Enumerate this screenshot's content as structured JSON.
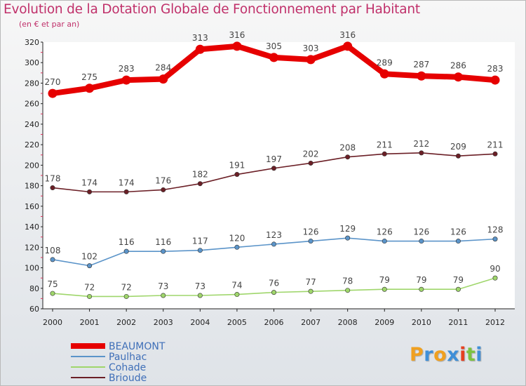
{
  "chart_data": {
    "type": "line",
    "title": "Evolution de la Dotation Globale de Fonctionnement par Habitant",
    "subtitle": "(en € et par an)",
    "xlabel": "",
    "ylabel": "",
    "x": [
      "2000",
      "2001",
      "2002",
      "2003",
      "2004",
      "2005",
      "2006",
      "2007",
      "2008",
      "2009",
      "2010",
      "2011",
      "2012"
    ],
    "ylim": [
      60,
      320
    ],
    "yticks": [
      60,
      80,
      100,
      120,
      140,
      160,
      180,
      200,
      220,
      240,
      260,
      280,
      300,
      320
    ],
    "legend_position": "bottom-left",
    "series": [
      {
        "name": "BEAUMONT",
        "color": "#e60000",
        "values": [
          270,
          275,
          283,
          284,
          313,
          316,
          305,
          303,
          316,
          289,
          287,
          286,
          283
        ]
      },
      {
        "name": "Paulhac",
        "color": "#5b94c9",
        "values": [
          108,
          102,
          116,
          116,
          117,
          120,
          123,
          126,
          129,
          126,
          126,
          126,
          128
        ]
      },
      {
        "name": "Cohade",
        "color": "#9fd66b",
        "values": [
          75,
          72,
          72,
          73,
          73,
          74,
          76,
          77,
          78,
          79,
          79,
          79,
          90
        ]
      },
      {
        "name": "Brioude",
        "color": "#6b1f26",
        "values": [
          178,
          174,
          174,
          176,
          182,
          191,
          197,
          202,
          208,
          211,
          212,
          209,
          211
        ]
      }
    ]
  },
  "logo": {
    "letters": [
      "P",
      "r",
      "o",
      "x",
      "i",
      "t",
      "i"
    ],
    "colors": [
      "#f0a020",
      "#3f8fd8",
      "#f0a020",
      "#3f8fd8",
      "#e64020",
      "#7cc340",
      "#3f8fd8"
    ]
  }
}
